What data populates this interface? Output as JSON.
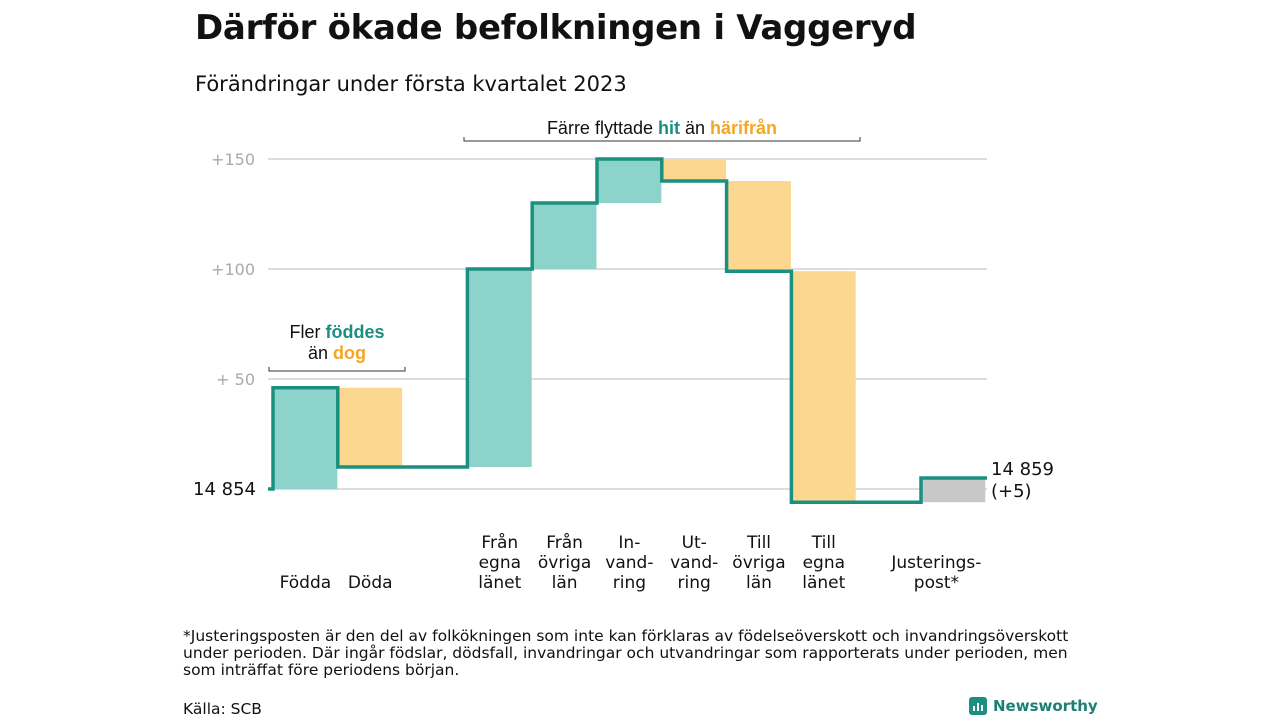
{
  "title": "Därför ökade befolkningen i Vaggeryd",
  "subtitle": "Förändringar under första kvartalet 2023",
  "footnote": "*Justeringsposten är den del av folkökningen som inte kan förklaras av födelseöverskott och invandringsöverskott under perioden. Där ingår födslar, dödsfall, invandringar och utvandringar som rapporterats under perioden, men som inträffat före periodens början.",
  "source": "Källa: SCB",
  "brand": "Newsworthy",
  "colors": {
    "positive": "#8cd4cb",
    "negative": "#fbd790",
    "adjustment": "#c8c8c8",
    "line": "#1b8f80",
    "orange_text": "#f5a623",
    "teal_text": "#1b8f80"
  },
  "annotations": {
    "births": {
      "line1_pre": "Fler ",
      "line1_hl": "föddes",
      "line2_pre": "än ",
      "line2_hl": "dog"
    },
    "migration": {
      "pre": "Färre flyttade ",
      "hl1": "hit",
      "mid": " än ",
      "hl2": "härifrån"
    }
  },
  "chart_data": {
    "type": "waterfall",
    "start_label": "14 854",
    "end_label": [
      "14 859",
      "(+5)"
    ],
    "y_ticks": [
      {
        "value": 150,
        "label": "+150"
      },
      {
        "value": 100,
        "label": "+100"
      },
      {
        "value": 50,
        "label": "+ 50"
      }
    ],
    "steps": [
      {
        "label": [
          "Födda"
        ],
        "change": 46,
        "kind": "positive"
      },
      {
        "label": [
          "Döda"
        ],
        "change": -36,
        "kind": "negative"
      },
      {
        "label": [
          ""
        ],
        "change": 0,
        "kind": "gap"
      },
      {
        "label": [
          "Från",
          "egna",
          "länet"
        ],
        "change": 90,
        "kind": "positive"
      },
      {
        "label": [
          "Från",
          "övriga",
          "län"
        ],
        "change": 30,
        "kind": "positive"
      },
      {
        "label": [
          "In-",
          "vand-",
          "ring"
        ],
        "change": 20,
        "kind": "positive"
      },
      {
        "label": [
          "Ut-",
          "vand-",
          "ring"
        ],
        "change": -10,
        "kind": "negative"
      },
      {
        "label": [
          "Till",
          "övriga",
          "län"
        ],
        "change": -41,
        "kind": "negative"
      },
      {
        "label": [
          "Till",
          "egna",
          "länet"
        ],
        "change": -105,
        "kind": "negative"
      },
      {
        "label": [
          ""
        ],
        "change": 0,
        "kind": "gap"
      },
      {
        "label": [
          "Justerings-",
          "post*"
        ],
        "change": 11,
        "kind": "adjustment"
      }
    ],
    "grid": true
  }
}
